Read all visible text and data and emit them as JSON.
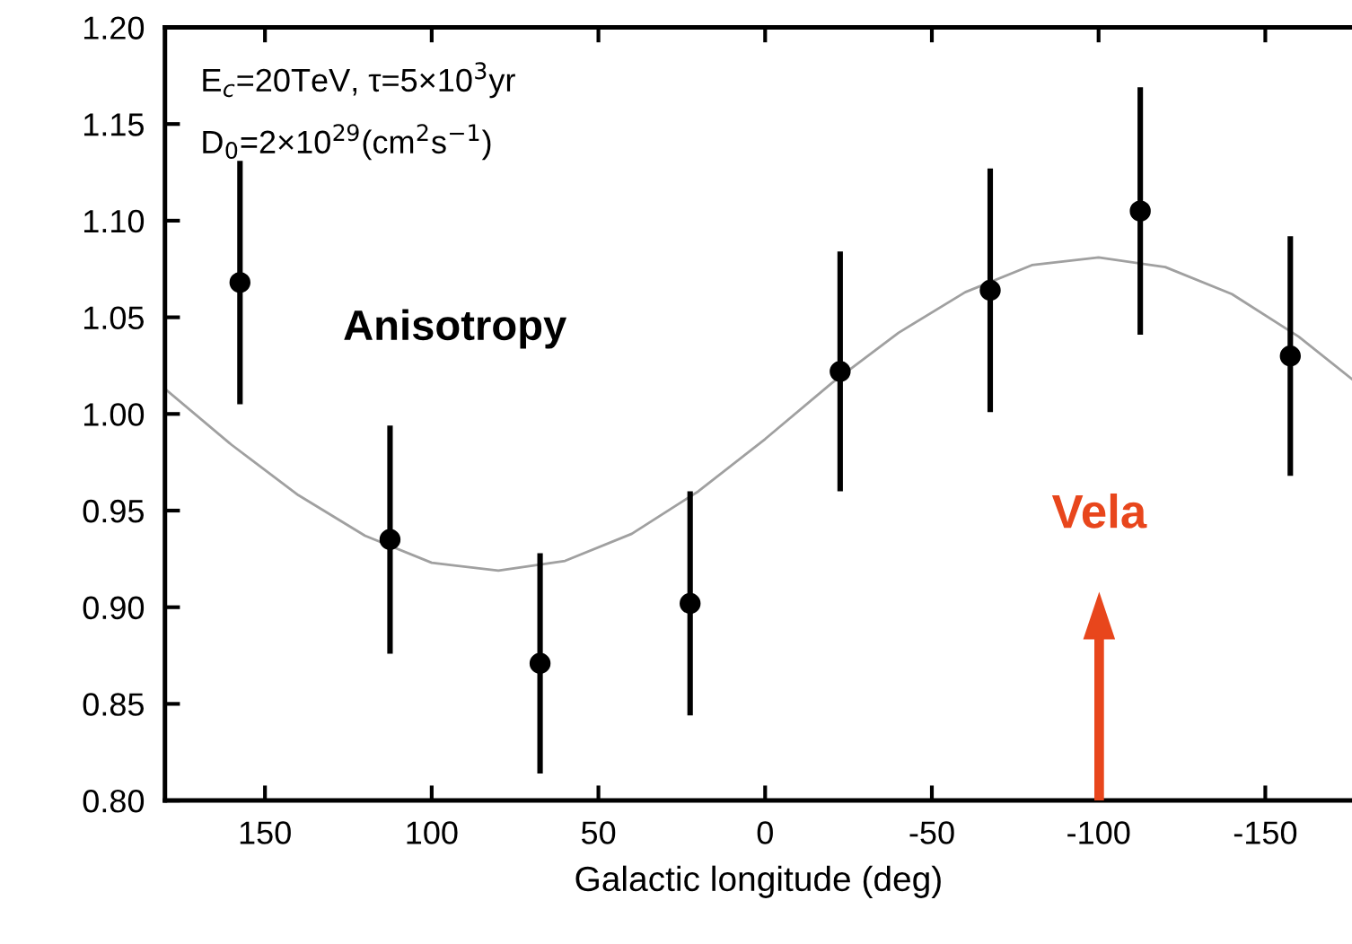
{
  "chart_data": {
    "type": "scatter",
    "xlabel": "Galactic longitude (deg)",
    "x": [
      157.5,
      112.5,
      67.5,
      22.5,
      -22.5,
      -67.5,
      -112.5,
      -157.5
    ],
    "series": [
      {
        "color": "#000000",
        "marker": "circle",
        "values": [
          1.068,
          0.935,
          0.871,
          0.902,
          1.022,
          1.064,
          1.105,
          1.03
        ],
        "errors": [
          0.063,
          0.059,
          0.057,
          0.058,
          0.062,
          0.063,
          0.064,
          0.062
        ]
      },
      {
        "type": "line",
        "color": "#a0a0a0",
        "marker": "none",
        "line_style": "solid",
        "x": [
          180,
          160,
          140,
          120,
          100,
          80,
          60,
          40,
          20,
          0,
          -20,
          -40,
          -60,
          -80,
          -100,
          -120,
          -140,
          -160,
          -176
        ],
        "values": [
          1.013,
          0.984,
          0.958,
          0.937,
          0.923,
          0.919,
          0.924,
          0.938,
          0.96,
          0.987,
          1.016,
          1.042,
          1.063,
          1.077,
          1.081,
          1.076,
          1.062,
          1.04,
          1.018
        ]
      }
    ],
    "xlim": [
      180,
      -176
    ],
    "ylim": [
      0.8,
      1.2
    ],
    "xticks": [
      150,
      100,
      50,
      0,
      -50,
      -100,
      -150
    ],
    "yticks": [
      {
        "value": 0.8,
        "label": "0.80"
      },
      {
        "value": 0.85,
        "label": "0.85"
      },
      {
        "value": 0.9,
        "label": "0.90"
      },
      {
        "value": 0.95,
        "label": "0.95"
      },
      {
        "value": 1.0,
        "label": "1.00"
      },
      {
        "value": 1.05,
        "label": "1.05"
      },
      {
        "value": 1.1,
        "label": "1.10"
      },
      {
        "value": 1.15,
        "label": "1.15"
      },
      {
        "value": 1.2,
        "label": "1.20"
      }
    ],
    "grid": false,
    "annotations": [
      "E$_{c}$=20TeV, τ=5×10$^{3}$yr",
      "D$_{0}$=2×10$^{29}$(cm$^{2}$s$^{−1}$)",
      "Anisotropy",
      "Vela"
    ]
  }
}
